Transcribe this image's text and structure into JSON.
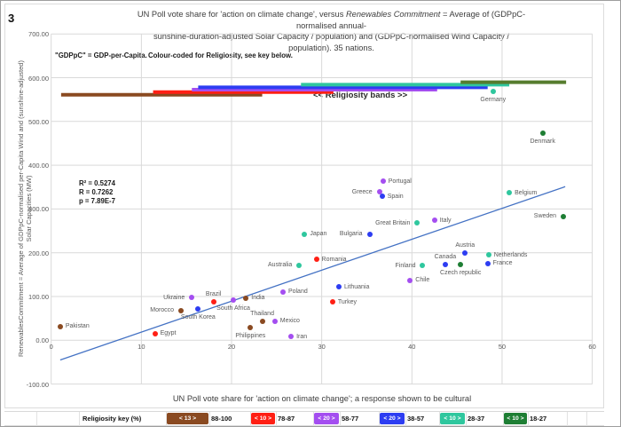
{
  "figure_number": "3",
  "title": {
    "pre": "UN Poll vote share for 'action on climate change', versus ",
    "italic": "Renewables Commitment",
    "post1": " = Average of (GDPpC-normalised annual-",
    "line2": "sunshine-duration-adjusted Solar Capacity / population) and (GDPpC-normalised Wind Capacity / population). 35 nations."
  },
  "notes": {
    "gdppc": "\"GDPpC\" = GDP-per-Capita.",
    "colour": "Colour-coded for Religiosity, see key below."
  },
  "chart_data": {
    "type": "scatter",
    "title": "UN Poll vote share for 'action on climate change', versus Renewables Commitment = Average of (GDPpC-normalised annual-sunshine-duration-adjusted Solar Capacity / population) and (GDPpC-normalised Wind Capacity / population). 35 nations.",
    "xlabel": "UN Poll vote share for 'action on climate change'; a response shown to be cultural",
    "ylabel": "RenewablesCommitment = Average of GDPpC-normalised per-Capita Wind and (sunshine-adjusted) Solar Capacities (MW)",
    "ylabel_lines": [
      "RenewablesCommitment = Average of GDPpC-normalised per-Capita Wind and (sunshine-adjusted)",
      "Solar Capacities (MW)"
    ],
    "xlim": [
      0,
      60
    ],
    "ylim": [
      -100,
      700
    ],
    "xticks": [
      0,
      10,
      20,
      30,
      40,
      50,
      60
    ],
    "yticks": [
      700,
      600,
      500,
      400,
      300,
      200,
      100,
      0,
      -100
    ],
    "grid": true,
    "legend_position": "bottom",
    "annotations": {
      "bands_label": "<<  Religiosity bands  >>",
      "stats": [
        "R² = 0.5274",
        "R = 0.7262",
        "p = 7.89E-7"
      ]
    },
    "trendline": {
      "x1": 1,
      "y1": -45,
      "x2": 57,
      "y2": 351,
      "color": "#4472c4"
    },
    "bands": [
      {
        "range": "88-100",
        "color": "#8a4a21",
        "x1": 1.1,
        "x2": 23.4,
        "y": 561
      },
      {
        "range": "78-87",
        "color": "#ff1f14",
        "x1": 11.3,
        "x2": 31.3,
        "y": 567
      },
      {
        "range": "58-77",
        "color": "#a44ef0",
        "x1": 15.6,
        "x2": 42.8,
        "y": 572.5
      },
      {
        "range": "38-57",
        "color": "#2d3df2",
        "x1": 16.3,
        "x2": 48.4,
        "y": 578
      },
      {
        "range": "28-37",
        "color": "#2fc79e",
        "x1": 27.7,
        "x2": 50.8,
        "y": 584
      },
      {
        "range": "18-27",
        "color": "#567d2f",
        "x1": 45.4,
        "x2": 57.1,
        "y": 589.5
      }
    ],
    "series": [
      {
        "name": "Religiosity 88-100",
        "color": "#8a4a21",
        "points": [
          {
            "label": "Pakistan",
            "x": 1.0,
            "y": 32,
            "lpos": "right"
          },
          {
            "label": "Morocco",
            "x": 14.4,
            "y": 68,
            "lpos": "left"
          },
          {
            "label": "India",
            "x": 21.6,
            "y": 96,
            "lpos": "right"
          },
          {
            "label": "Thailand",
            "x": 23.4,
            "y": 44,
            "lpos": "above"
          },
          {
            "label": "Philippines",
            "x": 22.1,
            "y": 28,
            "lpos": "below"
          }
        ]
      },
      {
        "name": "Religiosity 78-87",
        "color": "#ff1f14",
        "points": [
          {
            "label": "Egypt",
            "x": 11.5,
            "y": 15,
            "lpos": "right"
          },
          {
            "label": "Brazil",
            "x": 18.0,
            "y": 87,
            "lpos": "above"
          },
          {
            "label": "Romania",
            "x": 29.4,
            "y": 185,
            "lpos": "right"
          },
          {
            "label": "Turkey",
            "x": 31.2,
            "y": 87,
            "lpos": "right"
          }
        ]
      },
      {
        "name": "Religiosity 58-77",
        "color": "#a44ef0",
        "points": [
          {
            "label": "Ukraine",
            "x": 15.6,
            "y": 97,
            "lpos": "left"
          },
          {
            "label": "South Africa",
            "x": 20.2,
            "y": 91,
            "lpos": "below"
          },
          {
            "label": "Mexico",
            "x": 24.8,
            "y": 44,
            "lpos": "right"
          },
          {
            "label": "Iran",
            "x": 26.6,
            "y": 8,
            "lpos": "right"
          },
          {
            "label": "Poland",
            "x": 25.7,
            "y": 111,
            "lpos": "right"
          },
          {
            "label": "Chile",
            "x": 39.8,
            "y": 137,
            "lpos": "right"
          },
          {
            "label": "Italy",
            "x": 42.5,
            "y": 274,
            "lpos": "right"
          },
          {
            "label": "Portugal",
            "x": 36.8,
            "y": 363,
            "lpos": "right"
          },
          {
            "label": "Greece",
            "x": 36.4,
            "y": 339,
            "lpos": "left"
          }
        ]
      },
      {
        "name": "Religiosity 38-57",
        "color": "#2d3df2",
        "points": [
          {
            "label": "South Korea",
            "x": 16.3,
            "y": 71,
            "lpos": "below"
          },
          {
            "label": "Lithuania",
            "x": 31.9,
            "y": 122,
            "lpos": "right"
          },
          {
            "label": "Bulgaria",
            "x": 35.3,
            "y": 242,
            "lpos": "left"
          },
          {
            "label": "Spain",
            "x": 36.7,
            "y": 329,
            "lpos": "right"
          },
          {
            "label": "Austria",
            "x": 45.9,
            "y": 199,
            "lpos": "above"
          },
          {
            "label": "Canada",
            "x": 43.7,
            "y": 174,
            "lpos": "above"
          },
          {
            "label": "France",
            "x": 48.4,
            "y": 176,
            "lpos": "right"
          }
        ]
      },
      {
        "name": "Religiosity 28-37",
        "color": "#2fc79e",
        "points": [
          {
            "label": "Australia",
            "x": 27.5,
            "y": 172,
            "lpos": "left"
          },
          {
            "label": "Japan",
            "x": 28.1,
            "y": 243,
            "lpos": "right"
          },
          {
            "label": "Finland",
            "x": 41.2,
            "y": 170,
            "lpos": "left"
          },
          {
            "label": "Great Britain",
            "x": 40.6,
            "y": 268,
            "lpos": "left"
          },
          {
            "label": "Netherlands",
            "x": 48.5,
            "y": 195,
            "lpos": "right"
          },
          {
            "label": "Belgium",
            "x": 50.8,
            "y": 337,
            "lpos": "right"
          },
          {
            "label": "Germany",
            "x": 49.0,
            "y": 568,
            "lpos": "below"
          }
        ]
      },
      {
        "name": "Religiosity 18-27",
        "color": "#1e7e34",
        "points": [
          {
            "label": "Czech republic",
            "x": 45.4,
            "y": 174,
            "lpos": "below"
          },
          {
            "label": "Denmark",
            "x": 54.5,
            "y": 473,
            "lpos": "below"
          },
          {
            "label": "Sweden",
            "x": 56.8,
            "y": 283,
            "lpos": "left"
          }
        ]
      }
    ]
  },
  "key": {
    "label": "Religiosity key (%)",
    "entries": [
      {
        "count": "< 13 >",
        "range": "88-100",
        "color": "#8a4a21"
      },
      {
        "count": "< 10 >",
        "range": "78-87",
        "color": "#ff1f14"
      },
      {
        "count": "< 20 >",
        "range": "58-77",
        "color": "#a44ef0"
      },
      {
        "count": "< 20 >",
        "range": "38-57",
        "color": "#2d3df2"
      },
      {
        "count": "< 10 >",
        "range": "28-37",
        "color": "#2fc79e"
      },
      {
        "count": "< 10 >",
        "range": "18-27",
        "color": "#1e7e34"
      }
    ]
  }
}
